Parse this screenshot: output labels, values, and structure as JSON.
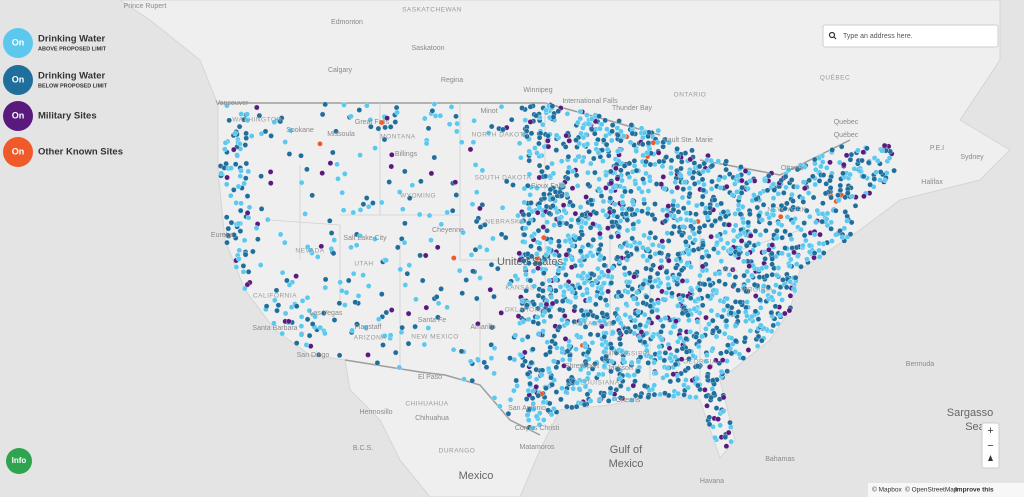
{
  "legend": [
    {
      "toggle": "On",
      "label": "Drinking Water",
      "sublabel": "ABOVE PROPOSED LIMIT"
    },
    {
      "toggle": "On",
      "label": "Drinking Water",
      "sublabel": "BELOW PROPOSED LIMIT"
    },
    {
      "toggle": "On",
      "label": "Military Sites"
    },
    {
      "toggle": "On",
      "label": "Other Known Sites"
    }
  ],
  "search": {
    "placeholder": "Type an address here."
  },
  "info_button": "Info",
  "zoom": {
    "in": "+",
    "out": "−"
  },
  "attribution": {
    "mapbox": "© Mapbox",
    "osm": "© OpenStreetMap",
    "improve": "Improve this"
  },
  "map_labels": [
    "Prince Rupert",
    "Edmonton",
    "SASKATCHEWAN",
    "Saskatoon",
    "Calgary",
    "Regina",
    "Winnipeg",
    "ONTARIO",
    "International Falls",
    "Thunder Bay",
    "QUÉBEC",
    "Vancouver",
    "WASHINGTON",
    "Spokane",
    "Great Falls",
    "MONTANA",
    "Missoula",
    "Billings",
    "Minot",
    "NORTH DAKOTA",
    "Sault Ste. Marie",
    "Ottawa",
    "Québec",
    "P.E.I",
    "Sydney",
    "Halifax",
    "WYOMING",
    "SOUTH DAKOTA",
    "Sioux Falls",
    "NEW YORK",
    "Eureka",
    "NEVADA",
    "Salt Lake City",
    "Cheyenne",
    "NEBRASKA",
    "UTAH",
    "United States",
    "CALIFORNIA",
    "Las Vegas",
    "KANSAS",
    "VIRGINIA",
    "W.V.",
    "Santa Fe",
    "NEW MEXICO",
    "ARIZONA",
    "Flagstaff",
    "Amarillo",
    "OKLAHOMA",
    "ARKANSAS",
    "MISSISSIPPI",
    "Santa Barbara",
    "San Diego",
    "El Paso",
    "Shreveport",
    "LOUISIANA",
    "Jackson",
    "GEORGIA",
    "San Antonio",
    "Corpus Christi",
    "Orleans",
    "Bermuda",
    "CHIHUAHUA",
    "Hermosillo",
    "Chihuahua",
    "B.C.S.",
    "DURANGO",
    "Sargasso",
    "Sea",
    "Gulf of",
    "Mexico",
    "Bahamas",
    "Havana",
    "Mexico",
    "Matamoros",
    "Quebec"
  ]
}
